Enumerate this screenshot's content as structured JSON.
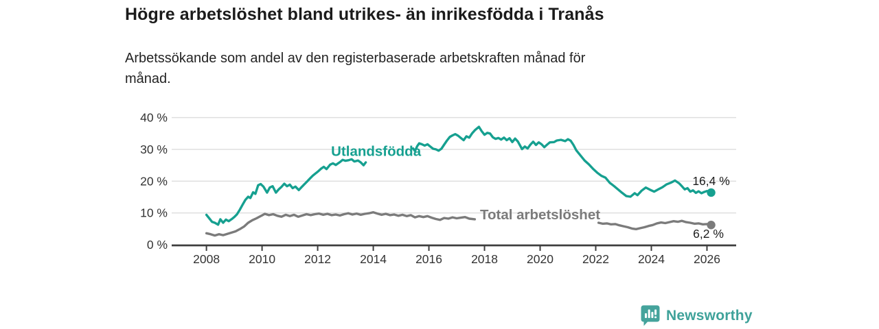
{
  "header": {
    "title": "Högre arbetslöshet bland utrikes- än inrikesfödda i Tranås",
    "subtitle": "Arbetssökande som andel av den registerbaserade arbetskraften månad för månad."
  },
  "chart_data": {
    "type": "line",
    "title": "Högre arbetslöshet bland utrikes- än inrikesfödda i Tranås",
    "subtitle": "Arbetssökande som andel av den registerbaserade arbetskraften månad för månad.",
    "unit": "%",
    "xlim": [
      2006.75,
      2027.05
    ],
    "ylim": [
      0,
      42.5
    ],
    "grid": "horizontal-only",
    "legend_position": "inline-labels",
    "x_ticks": [
      {
        "v": 2008,
        "label": "2008"
      },
      {
        "v": 2010,
        "label": "2010"
      },
      {
        "v": 2012,
        "label": "2012"
      },
      {
        "v": 2014,
        "label": "2014"
      },
      {
        "v": 2016,
        "label": "2016"
      },
      {
        "v": 2018,
        "label": "2018"
      },
      {
        "v": 2020,
        "label": "2020"
      },
      {
        "v": 2022,
        "label": "2022"
      },
      {
        "v": 2024,
        "label": "2024"
      },
      {
        "v": 2026,
        "label": "2026"
      }
    ],
    "y_ticks": [
      {
        "v": 0,
        "label": "0 %"
      },
      {
        "v": 10,
        "label": "10 %"
      },
      {
        "v": 20,
        "label": "20 %"
      },
      {
        "v": 30,
        "label": "30 %"
      },
      {
        "v": 40,
        "label": "40 %"
      }
    ],
    "colors": {
      "utlandsfodda": "#16a090",
      "total": "#7b7b7b",
      "grid": "#dcdcdc",
      "axis": "#3d3d3d",
      "tick_text": "#333333",
      "annotation_text": "#1c1c1c"
    },
    "series": [
      {
        "name": "Utlandsfödda",
        "slug": "utlandsfodda",
        "color": "#16a090",
        "end_value": 16.4,
        "inline_label": {
          "text": "Utlandsfödda",
          "x": 2014.1,
          "y": 29.4
        },
        "end_label": {
          "text": "16,4 %",
          "x": 2026.15,
          "y": 20.1
        },
        "segments": [
          [
            [
              2008.0,
              9.4
            ],
            [
              2008.1,
              8.3
            ],
            [
              2008.2,
              7.2
            ],
            [
              2008.3,
              6.9
            ],
            [
              2008.42,
              6.3
            ],
            [
              2008.5,
              8.0
            ],
            [
              2008.6,
              6.9
            ],
            [
              2008.7,
              7.9
            ],
            [
              2008.8,
              7.4
            ],
            [
              2008.9,
              8.0
            ],
            [
              2009.0,
              8.7
            ],
            [
              2009.1,
              9.6
            ],
            [
              2009.2,
              11.0
            ],
            [
              2009.3,
              12.6
            ],
            [
              2009.4,
              14.1
            ],
            [
              2009.5,
              15.1
            ],
            [
              2009.58,
              14.7
            ],
            [
              2009.68,
              16.5
            ],
            [
              2009.76,
              16.0
            ],
            [
              2009.86,
              18.7
            ],
            [
              2009.95,
              19.1
            ],
            [
              2010.05,
              18.3
            ],
            [
              2010.18,
              16.4
            ],
            [
              2010.28,
              18.0
            ],
            [
              2010.38,
              18.4
            ],
            [
              2010.5,
              16.4
            ],
            [
              2010.6,
              17.4
            ],
            [
              2010.7,
              18.2
            ],
            [
              2010.8,
              19.2
            ],
            [
              2010.9,
              18.4
            ],
            [
              2011.0,
              18.9
            ],
            [
              2011.1,
              17.8
            ],
            [
              2011.2,
              18.3
            ],
            [
              2011.32,
              17.2
            ],
            [
              2011.42,
              18.1
            ],
            [
              2011.52,
              19.0
            ],
            [
              2011.62,
              19.9
            ],
            [
              2011.72,
              20.8
            ],
            [
              2011.82,
              21.7
            ],
            [
              2011.92,
              22.4
            ],
            [
              2012.02,
              23.1
            ],
            [
              2012.12,
              23.9
            ],
            [
              2012.22,
              24.5
            ],
            [
              2012.32,
              23.8
            ],
            [
              2012.45,
              25.2
            ],
            [
              2012.55,
              25.6
            ],
            [
              2012.65,
              25.1
            ],
            [
              2012.8,
              26.0
            ],
            [
              2012.9,
              26.7
            ],
            [
              2013.0,
              26.4
            ],
            [
              2013.12,
              26.6
            ],
            [
              2013.22,
              26.9
            ],
            [
              2013.32,
              26.2
            ],
            [
              2013.45,
              26.5
            ],
            [
              2013.55,
              25.9
            ],
            [
              2013.65,
              25.0
            ],
            [
              2013.73,
              25.9
            ]
          ],
          [
            [
              2015.43,
              30.3
            ],
            [
              2015.5,
              29.5
            ],
            [
              2015.58,
              31.0
            ],
            [
              2015.65,
              31.9
            ],
            [
              2015.75,
              31.6
            ],
            [
              2015.85,
              31.2
            ],
            [
              2015.95,
              31.6
            ],
            [
              2016.05,
              30.9
            ],
            [
              2016.15,
              30.2
            ],
            [
              2016.25,
              30.0
            ],
            [
              2016.35,
              29.6
            ],
            [
              2016.45,
              30.2
            ],
            [
              2016.55,
              31.5
            ],
            [
              2016.65,
              32.8
            ],
            [
              2016.75,
              33.9
            ],
            [
              2016.85,
              34.4
            ],
            [
              2016.95,
              34.8
            ],
            [
              2017.05,
              34.3
            ],
            [
              2017.15,
              33.6
            ],
            [
              2017.25,
              32.9
            ],
            [
              2017.35,
              34.1
            ],
            [
              2017.45,
              33.7
            ],
            [
              2017.55,
              35.0
            ],
            [
              2017.65,
              36.0
            ],
            [
              2017.8,
              37.1
            ],
            [
              2017.9,
              35.7
            ],
            [
              2018.0,
              34.6
            ],
            [
              2018.1,
              35.2
            ],
            [
              2018.2,
              35.0
            ],
            [
              2018.3,
              33.8
            ],
            [
              2018.4,
              33.3
            ],
            [
              2018.5,
              33.6
            ],
            [
              2018.6,
              33.1
            ],
            [
              2018.7,
              33.7
            ],
            [
              2018.8,
              32.9
            ],
            [
              2018.9,
              33.5
            ],
            [
              2019.0,
              32.3
            ],
            [
              2019.1,
              33.4
            ],
            [
              2019.2,
              32.5
            ],
            [
              2019.35,
              30.1
            ],
            [
              2019.45,
              30.9
            ],
            [
              2019.55,
              30.3
            ],
            [
              2019.65,
              31.5
            ],
            [
              2019.75,
              32.4
            ],
            [
              2019.85,
              31.4
            ],
            [
              2019.95,
              32.2
            ],
            [
              2020.05,
              31.6
            ],
            [
              2020.15,
              30.7
            ],
            [
              2020.25,
              31.5
            ],
            [
              2020.35,
              32.2
            ],
            [
              2020.5,
              32.3
            ],
            [
              2020.6,
              32.8
            ],
            [
              2020.75,
              33.0
            ],
            [
              2020.9,
              32.6
            ],
            [
              2021.0,
              33.2
            ],
            [
              2021.1,
              32.7
            ],
            [
              2021.2,
              31.4
            ],
            [
              2021.3,
              29.7
            ],
            [
              2021.45,
              28.1
            ],
            [
              2021.6,
              26.5
            ],
            [
              2021.75,
              25.3
            ],
            [
              2021.9,
              23.9
            ],
            [
              2022.05,
              22.7
            ],
            [
              2022.2,
              21.7
            ],
            [
              2022.35,
              21.1
            ],
            [
              2022.5,
              19.5
            ],
            [
              2022.65,
              18.5
            ],
            [
              2022.8,
              17.4
            ],
            [
              2022.95,
              16.3
            ],
            [
              2023.1,
              15.3
            ],
            [
              2023.25,
              15.1
            ],
            [
              2023.4,
              16.2
            ],
            [
              2023.5,
              15.6
            ],
            [
              2023.65,
              17.0
            ],
            [
              2023.8,
              18.0
            ],
            [
              2023.95,
              17.3
            ],
            [
              2024.1,
              16.7
            ],
            [
              2024.25,
              17.4
            ],
            [
              2024.4,
              18.1
            ],
            [
              2024.55,
              19.0
            ],
            [
              2024.7,
              19.5
            ],
            [
              2024.85,
              20.2
            ],
            [
              2025.0,
              19.3
            ],
            [
              2025.1,
              18.4
            ],
            [
              2025.2,
              17.4
            ],
            [
              2025.3,
              17.8
            ],
            [
              2025.4,
              16.7
            ],
            [
              2025.5,
              17.1
            ],
            [
              2025.6,
              16.3
            ],
            [
              2025.7,
              16.8
            ],
            [
              2025.8,
              16.2
            ],
            [
              2025.9,
              16.6
            ],
            [
              2026.0,
              16.9
            ],
            [
              2026.15,
              16.4
            ]
          ]
        ]
      },
      {
        "name": "Total arbetslöshet",
        "slug": "total-arbetsloshet",
        "color": "#7b7b7b",
        "end_value": 6.2,
        "inline_label": {
          "text": "Total arbetslöshet",
          "x": 2020.0,
          "y": 9.5
        },
        "end_label": {
          "text": "6,2 %",
          "x": 2026.05,
          "y": 3.5
        },
        "segments": [
          [
            [
              2008.0,
              3.6
            ],
            [
              2008.15,
              3.3
            ],
            [
              2008.3,
              2.9
            ],
            [
              2008.45,
              3.3
            ],
            [
              2008.6,
              3.0
            ],
            [
              2008.75,
              3.4
            ],
            [
              2008.9,
              3.8
            ],
            [
              2009.05,
              4.2
            ],
            [
              2009.2,
              4.9
            ],
            [
              2009.35,
              5.7
            ],
            [
              2009.5,
              6.9
            ],
            [
              2009.65,
              7.7
            ],
            [
              2009.8,
              8.3
            ],
            [
              2009.95,
              9.0
            ],
            [
              2010.1,
              9.7
            ],
            [
              2010.25,
              9.3
            ],
            [
              2010.4,
              9.6
            ],
            [
              2010.55,
              9.1
            ],
            [
              2010.7,
              8.8
            ],
            [
              2010.85,
              9.4
            ],
            [
              2011.0,
              9.0
            ],
            [
              2011.15,
              9.4
            ],
            [
              2011.3,
              8.8
            ],
            [
              2011.45,
              9.2
            ],
            [
              2011.6,
              9.6
            ],
            [
              2011.75,
              9.3
            ],
            [
              2011.9,
              9.6
            ],
            [
              2012.05,
              9.8
            ],
            [
              2012.2,
              9.4
            ],
            [
              2012.35,
              9.7
            ],
            [
              2012.5,
              9.3
            ],
            [
              2012.65,
              9.5
            ],
            [
              2012.8,
              9.2
            ],
            [
              2012.95,
              9.6
            ],
            [
              2013.1,
              9.9
            ],
            [
              2013.25,
              9.5
            ],
            [
              2013.4,
              9.8
            ],
            [
              2013.55,
              9.4
            ],
            [
              2013.7,
              9.7
            ],
            [
              2013.85,
              9.9
            ],
            [
              2014.0,
              10.2
            ],
            [
              2014.15,
              9.8
            ],
            [
              2014.3,
              9.4
            ],
            [
              2014.45,
              9.7
            ],
            [
              2014.6,
              9.3
            ],
            [
              2014.75,
              9.5
            ],
            [
              2014.9,
              9.1
            ],
            [
              2015.05,
              9.4
            ],
            [
              2015.2,
              9.0
            ],
            [
              2015.35,
              9.3
            ],
            [
              2015.5,
              8.6
            ],
            [
              2015.65,
              9.0
            ],
            [
              2015.8,
              8.7
            ],
            [
              2015.95,
              9.0
            ],
            [
              2016.1,
              8.5
            ],
            [
              2016.25,
              8.1
            ],
            [
              2016.4,
              7.8
            ],
            [
              2016.55,
              8.4
            ],
            [
              2016.7,
              8.2
            ],
            [
              2016.85,
              8.6
            ],
            [
              2017.0,
              8.3
            ],
            [
              2017.15,
              8.5
            ],
            [
              2017.3,
              8.7
            ],
            [
              2017.45,
              8.2
            ],
            [
              2017.65,
              8.0
            ]
          ],
          [
            [
              2022.1,
              6.9
            ],
            [
              2022.25,
              6.6
            ],
            [
              2022.4,
              6.7
            ],
            [
              2022.55,
              6.4
            ],
            [
              2022.7,
              6.5
            ],
            [
              2022.85,
              6.1
            ],
            [
              2023.0,
              5.8
            ],
            [
              2023.15,
              5.5
            ],
            [
              2023.3,
              5.1
            ],
            [
              2023.45,
              4.9
            ],
            [
              2023.6,
              5.2
            ],
            [
              2023.75,
              5.5
            ],
            [
              2023.9,
              5.9
            ],
            [
              2024.05,
              6.2
            ],
            [
              2024.2,
              6.7
            ],
            [
              2024.35,
              7.0
            ],
            [
              2024.5,
              6.8
            ],
            [
              2024.65,
              7.1
            ],
            [
              2024.8,
              7.4
            ],
            [
              2024.95,
              7.2
            ],
            [
              2025.1,
              7.5
            ],
            [
              2025.25,
              7.1
            ],
            [
              2025.4,
              6.9
            ],
            [
              2025.55,
              6.6
            ],
            [
              2025.7,
              6.7
            ],
            [
              2025.85,
              6.4
            ],
            [
              2026.0,
              6.5
            ],
            [
              2026.15,
              6.2
            ]
          ]
        ]
      }
    ]
  },
  "footer": {
    "brand": "Newsworthy",
    "logo_icon": "bar-chart-speech-bubble"
  }
}
